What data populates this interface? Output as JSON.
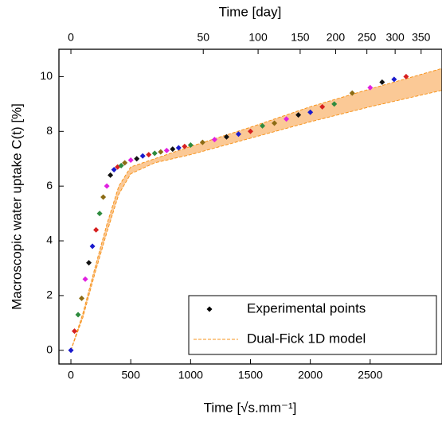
{
  "chart_data": {
    "type": "scatter",
    "top_axis_label": "Time [day]",
    "x_label": "Time [√s.mm⁻¹]",
    "y_label": "Macroscopic water uptake C(t) [%]",
    "xlim": [
      -100,
      3100
    ],
    "xticks": [
      0,
      500,
      1000,
      1500,
      2000,
      2500
    ],
    "ylim": [
      -0.5,
      11
    ],
    "yticks": [
      0,
      2,
      4,
      6,
      8,
      10
    ],
    "x2lim": [
      0,
      393
    ],
    "x2scale": "sqrt",
    "x2ticks": [
      0,
      50,
      100,
      150,
      200,
      250,
      300,
      350
    ],
    "legend": "lower right",
    "point_colors": [
      "#1a1acc",
      "#d62020",
      "#2e8b3e",
      "#8b6b14",
      "#e020e0",
      "#111111"
    ],
    "series": [
      {
        "name": "Experimental points",
        "kind": "points",
        "color": "#000000",
        "x": [
          0,
          30,
          60,
          90,
          120,
          150,
          180,
          210,
          240,
          270,
          300,
          330,
          360,
          390,
          420,
          450,
          500,
          550,
          600,
          650,
          700,
          750,
          800,
          850,
          900,
          950,
          1000,
          1100,
          1200,
          1300,
          1400,
          1500,
          1600,
          1700,
          1800,
          1900,
          2000,
          2100,
          2200,
          2350,
          2500,
          2600,
          2700,
          2800
        ],
        "values": [
          0,
          0.7,
          1.3,
          1.9,
          2.6,
          3.2,
          3.8,
          4.4,
          5.0,
          5.6,
          6.0,
          6.4,
          6.6,
          6.7,
          6.75,
          6.85,
          6.95,
          7.0,
          7.1,
          7.15,
          7.2,
          7.25,
          7.3,
          7.35,
          7.4,
          7.45,
          7.5,
          7.6,
          7.7,
          7.8,
          7.9,
          8.0,
          8.2,
          8.3,
          8.45,
          8.6,
          8.7,
          8.9,
          9.0,
          9.4,
          9.6,
          9.8,
          9.9,
          10.0
        ]
      },
      {
        "name": "Dual-Fick 1D model",
        "kind": "band",
        "color": "#f7941d",
        "fill": "#fbc996",
        "x": [
          0,
          100,
          200,
          300,
          400,
          500,
          700,
          1000,
          1500,
          2000,
          2500,
          3100
        ],
        "lower": [
          0,
          1.2,
          2.8,
          4.3,
          5.7,
          6.45,
          6.85,
          7.15,
          7.75,
          8.35,
          8.9,
          9.5
        ],
        "upper": [
          0,
          1.35,
          3.0,
          4.6,
          6.0,
          6.7,
          7.0,
          7.45,
          8.15,
          8.9,
          9.55,
          10.3
        ]
      }
    ]
  }
}
